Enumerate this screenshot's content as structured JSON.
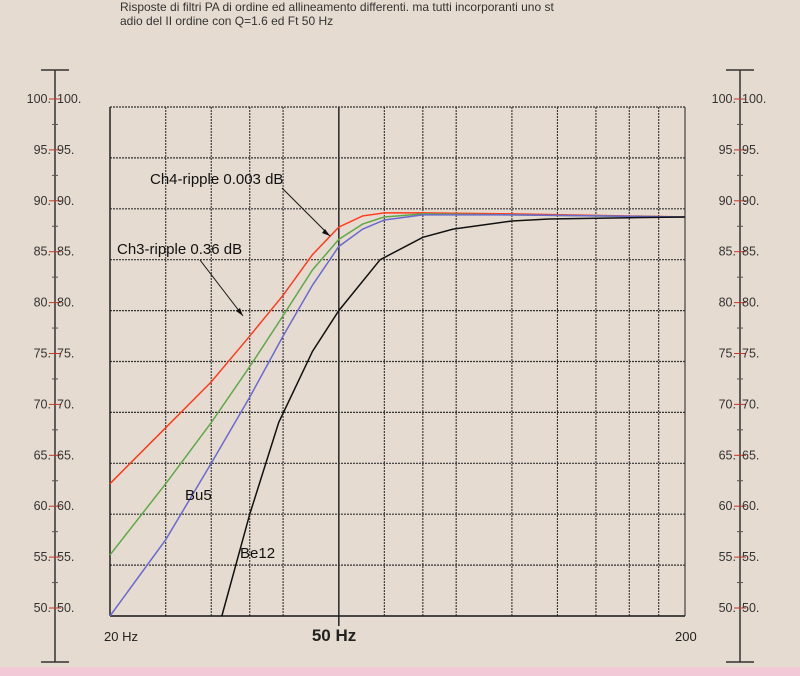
{
  "chart_data": {
    "type": "line",
    "title_line1": "Risposte di filtri PA di ordine ed allineamento differenti. ma tutti incorporanti uno st",
    "title_line2": "adio del II ordine con Q=1.6 ed Ft 50 Hz",
    "xscale": "log",
    "xlim": [
      20,
      200
    ],
    "ylim": [
      50,
      100
    ],
    "x_tick_labels": [
      {
        "x": 20,
        "label": "20 Hz"
      },
      {
        "x": 50,
        "label": "50 Hz"
      },
      {
        "x": 200,
        "label": "200"
      }
    ],
    "y_ticks": [
      50,
      55,
      60,
      65,
      70,
      75,
      80,
      85,
      90,
      95,
      100
    ],
    "y_tick_suffix": ".",
    "x_grid": [
      25,
      30,
      35,
      40,
      50,
      60,
      70,
      80,
      100,
      120,
      140,
      160,
      180,
      200
    ],
    "grid": true,
    "series": [
      {
        "name": "Ch4-ripple 0.003 dB",
        "color": "#ff3a1e",
        "x": [
          20,
          25,
          30,
          35,
          40,
          45,
          50,
          55,
          60,
          70,
          100,
          200
        ],
        "y": [
          63,
          68.5,
          73,
          77.5,
          81.5,
          85.5,
          88.2,
          89.3,
          89.6,
          89.6,
          89.5,
          89.2
        ]
      },
      {
        "name": "Ch3-ripple 0.36 dB",
        "color": "#5fa84a",
        "x": [
          20,
          25,
          30,
          35,
          40,
          45,
          50,
          55,
          60,
          70,
          100,
          200
        ],
        "y": [
          56,
          63,
          69,
          74.5,
          79.5,
          84,
          87,
          88.5,
          89.2,
          89.5,
          89.4,
          89.2
        ]
      },
      {
        "name": "Bu5",
        "color": "#6a6ad0",
        "x": [
          20,
          25,
          30,
          35,
          40,
          45,
          50,
          55,
          60,
          70,
          100,
          200
        ],
        "y": [
          49.5,
          57.5,
          65,
          71.5,
          77.5,
          82.5,
          86.3,
          88,
          88.9,
          89.4,
          89.4,
          89.2
        ]
      },
      {
        "name": "Be12",
        "color": "#111111",
        "x": [
          31.3,
          35,
          39.3,
          45,
          50,
          59,
          70,
          79,
          100,
          116,
          150,
          200
        ],
        "y": [
          50,
          60,
          69,
          76,
          80,
          85,
          87.2,
          88,
          88.8,
          89,
          89.1,
          89.2
        ]
      }
    ],
    "annotations": [
      "Ch4-ripple 0.003 dB",
      "Ch3-ripple 0.36 dB",
      "Bu5",
      "Be12"
    ]
  }
}
